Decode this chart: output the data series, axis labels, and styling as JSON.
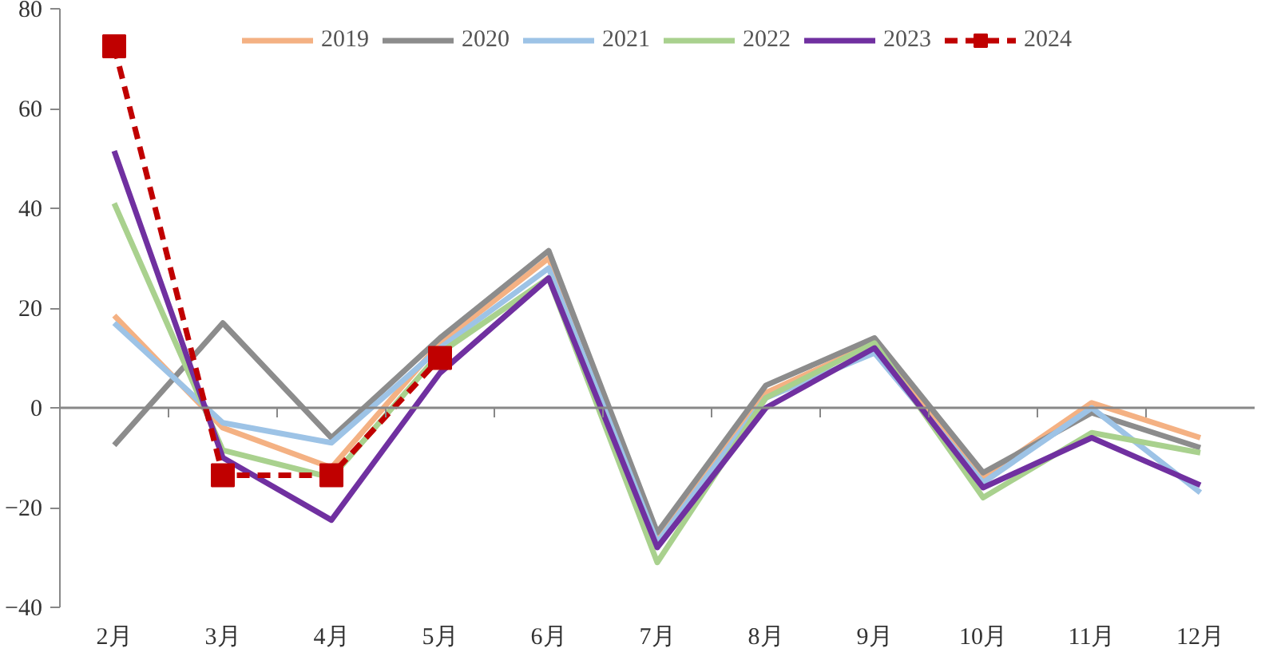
{
  "chart_data": {
    "type": "line",
    "categories": [
      "2月",
      "3月",
      "4月",
      "5月",
      "6月",
      "7月",
      "8月",
      "9月",
      "10月",
      "11月",
      "12月"
    ],
    "series": [
      {
        "name": "2019",
        "color": "#f4b183",
        "values": [
          18.5,
          -4,
          -12,
          13,
          30,
          -26,
          3,
          13,
          -14,
          1,
          -6
        ]
      },
      {
        "name": "2020",
        "color": "#8c8c8c",
        "values": [
          -7.5,
          17,
          -6,
          14,
          31.5,
          -25,
          4.5,
          14,
          -13,
          -1,
          -8
        ]
      },
      {
        "name": "2021",
        "color": "#9dc3e6",
        "values": [
          17,
          -3,
          -7,
          12,
          28,
          -27,
          2,
          11,
          -15,
          0,
          -17
        ]
      },
      {
        "name": "2022",
        "color": "#a9d18e",
        "values": [
          41,
          -8.5,
          -14,
          11,
          26,
          -31,
          2,
          13,
          -18,
          -5,
          -9
        ]
      },
      {
        "name": "2023",
        "color": "#7030a0",
        "values": [
          51.5,
          -10,
          -22.5,
          7,
          26,
          -28,
          0,
          12,
          -16,
          -6,
          -15.5
        ]
      },
      {
        "name": "2024",
        "color": "#c00000",
        "values": [
          72.5,
          -13.5,
          -13.5,
          10,
          null,
          null,
          null,
          null,
          null,
          null,
          null
        ],
        "marker": "square",
        "line_style": "dashed"
      }
    ],
    "ylim": [
      -40,
      80
    ],
    "yticks": [
      -40,
      -20,
      0,
      20,
      40,
      60,
      80
    ],
    "legend": "top"
  }
}
